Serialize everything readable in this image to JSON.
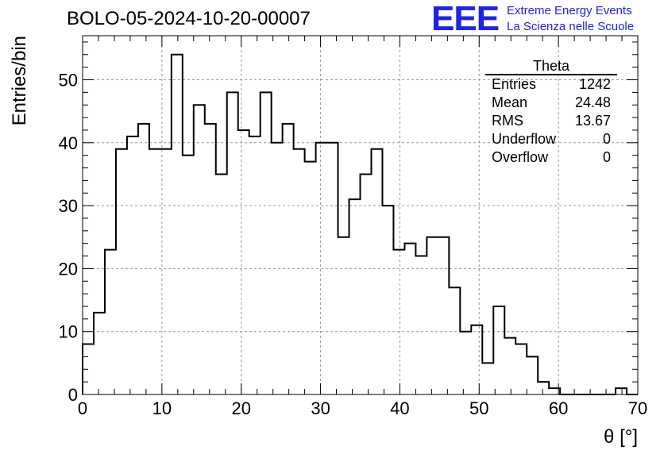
{
  "header": {
    "title": "BOLO-05-2024-10-20-00007",
    "logo_mark": "EEE",
    "logo_line1": "Extreme Energy Events",
    "logo_line2": "La Scienza nelle Scuole"
  },
  "stats_box": {
    "name": "Theta",
    "rows": [
      {
        "label": "Entries",
        "value": "1242"
      },
      {
        "label": "Mean",
        "value": "24.48"
      },
      {
        "label": "RMS",
        "value": "13.67"
      },
      {
        "label": "Underflow",
        "value": "0"
      },
      {
        "label": "Overflow",
        "value": "0"
      }
    ]
  },
  "colors": {
    "logo": "#1d24e6",
    "line": "#000000",
    "grid": "#999999"
  },
  "chart_data": {
    "type": "bar",
    "style": "step-histogram",
    "title": "BOLO-05-2024-10-20-00007",
    "xlabel": "θ [°]",
    "ylabel": "Entries/bin",
    "xlim": [
      0,
      70
    ],
    "ylim": [
      0,
      57
    ],
    "bin_width": 1.4,
    "bin_edges_start": 0,
    "values": [
      8,
      13,
      23,
      39,
      41,
      43,
      39,
      39,
      54,
      38,
      46,
      43,
      35,
      48,
      42,
      41,
      48,
      40,
      43,
      39,
      37,
      40,
      40,
      25,
      31,
      35,
      39,
      30,
      23,
      24,
      22,
      25,
      25,
      17,
      10,
      11,
      5,
      14,
      9,
      8,
      6,
      2,
      1,
      0,
      0,
      0,
      0,
      0,
      1,
      0
    ],
    "xticks": [
      0,
      10,
      20,
      30,
      40,
      50,
      60,
      70
    ],
    "yticks": [
      0,
      10,
      20,
      30,
      40,
      50
    ],
    "grid": true
  }
}
